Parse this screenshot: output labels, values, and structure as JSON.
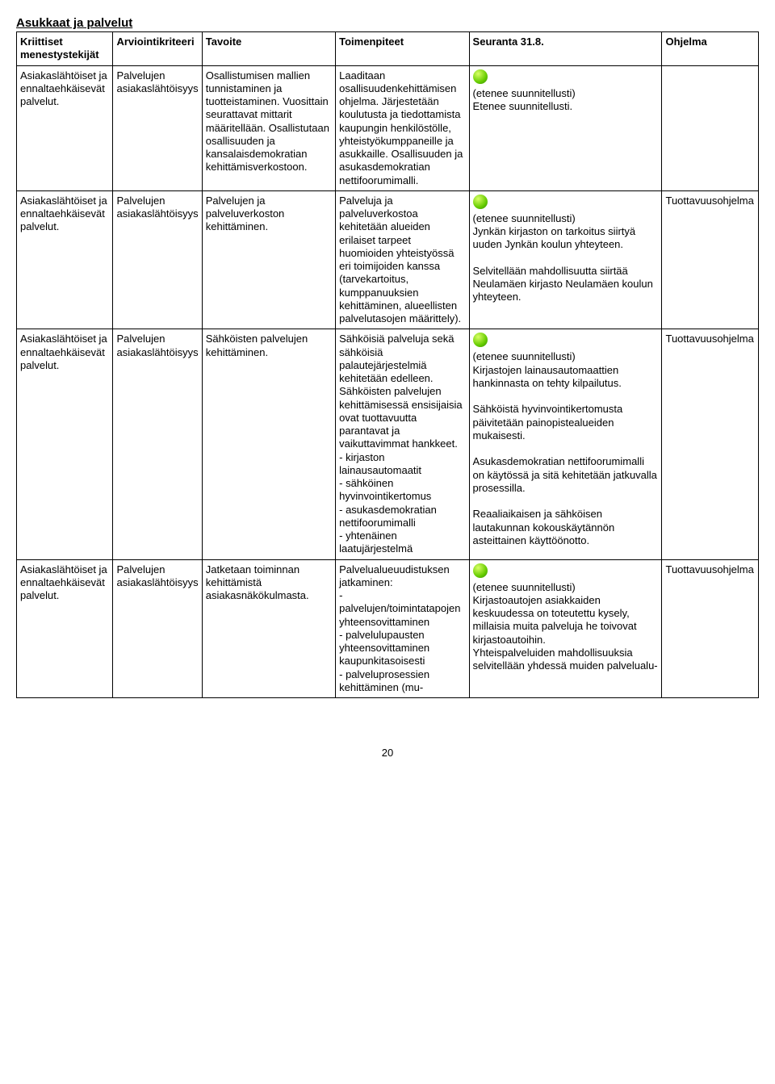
{
  "section_title": "Asukkaat ja palvelut",
  "columns": [
    "Kriittiset menestystekijät",
    "Arviointikriteeri",
    "Tavoite",
    "Toimenpiteet",
    "Seuranta 31.8.",
    "Ohjelma"
  ],
  "rows": [
    {
      "c0": "Asiakaslähtöiset ja ennaltaehkäisevät palvelut.",
      "c1": "Palvelujen asiakaslähtöisyys",
      "c2": "Osallistumisen mallien tunnistaminen ja tuotteistaminen. Vuosittain seurattavat mittarit määritellään. Osallistutaan osallisuuden ja kansalaisdemokratian kehittämisverkostoon.",
      "c3": "Laaditaan osallisuudenkehittämisen ohjelma. Järjestetään koulutusta ja tiedottamista kaupungin henkilöstölle, yhteistyökumppaneille ja asukkaille. Osallisuuden ja asukasdemokratian nettifoorumimalli.",
      "c4_status": "green",
      "c4_text": "(etenee suunnitellusti)\nEtenee suunnitellusti.",
      "c5": ""
    },
    {
      "c0": "Asiakaslähtöiset ja ennaltaehkäisevät palvelut.",
      "c1": "Palvelujen asiakaslähtöisyys",
      "c2": "Palvelujen ja palveluverkoston kehittäminen.",
      "c3": "Palveluja ja palveluverkostoa kehitetään alueiden erilaiset tarpeet huomioiden yhteistyössä eri toimijoiden kanssa (tarvekartoitus, kumppanuuksien kehittäminen, alueellisten palvelutasojen määrittely).",
      "c4_status": "green",
      "c4_text": "(etenee suunnitellusti)\nJynkän kirjaston on tarkoitus siirtyä uuden Jynkän koulun yhteyteen.\n\nSelvitellään mahdollisuutta siirtää Neulamäen kirjasto Neulamäen koulun yhteyteen.",
      "c5": "Tuottavuusohjelma"
    },
    {
      "c0": "Asiakaslähtöiset ja ennaltaehkäisevät palvelut.",
      "c1": "Palvelujen asiakaslähtöisyys",
      "c2": "Sähköisten palvelujen kehittäminen.",
      "c3": "Sähköisiä palveluja sekä sähköisiä palautejärjestelmiä kehitetään edelleen. Sähköisten palvelujen kehittämisessä ensisijaisia ovat tuottavuutta parantavat ja vaikuttavimmat hankkeet.\n- kirjaston lainausautomaatit\n- sähköinen hyvinvointikertomus\n- asukasdemokratian nettifoorumimalli\n- yhtenäinen laatujärjestelmä",
      "c4_status": "green",
      "c4_text": "(etenee suunnitellusti)\nKirjastojen lainausautomaattien hankinnasta on tehty kilpailutus.\n\nSähköistä hyvinvointikertomusta päivitetään painopistealueiden mukaisesti.\n\nAsukasdemokratian nettifoorumimalli on käytössä ja sitä kehitetään jatkuvalla prosessilla.\n\nReaaliaikaisen ja sähköisen lautakunnan kokouskäytännön asteittainen käyttöönotto.",
      "c5": "Tuottavuusohjelma"
    },
    {
      "c0": "Asiakaslähtöiset ja ennaltaehkäisevät palvelut.",
      "c1": "Palvelujen asiakaslähtöisyys",
      "c2": "Jatketaan toiminnan kehittämistä asiakasnäkökulmasta.",
      "c3": "Palvelualueuudistuksen jatkaminen:\n- palvelujen/toimintatapojen yhteensovittaminen\n- palvelulupausten yhteensovittaminen kaupunkitasoisesti\n- palveluprosessien kehittäminen (mu-",
      "c4_status": "green",
      "c4_text": "(etenee suunnitellusti)\nKirjastoautojen asiakkaiden keskuudessa on toteutettu kysely, millaisia muita palveluja he toivovat kirjastoautoihin.\nYhteispalveluiden mahdollisuuksia selvitellään yhdessä muiden palvelualu-",
      "c5": "Tuottavuusohjelma"
    }
  ],
  "page_number": "20",
  "colors": {
    "border": "#000000",
    "background": "#ffffff",
    "text": "#000000",
    "status_green": "#66cc00"
  },
  "fontsize": 13
}
